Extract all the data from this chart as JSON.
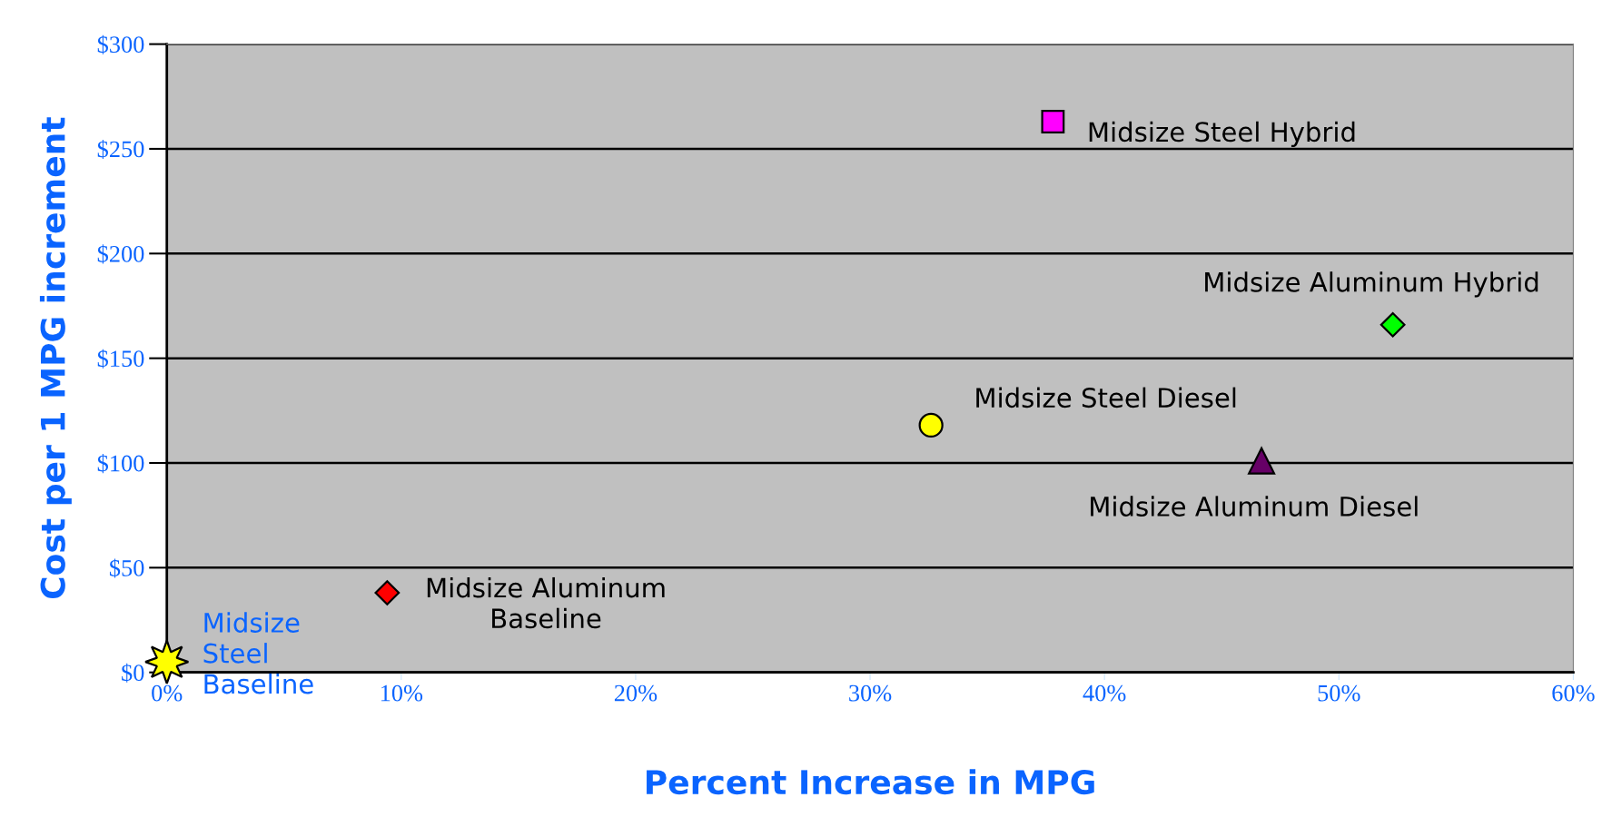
{
  "chart_data": {
    "type": "scatter",
    "xlabel": "Percent Increase in MPG",
    "ylabel": "Cost per 1 MPG increment",
    "series": [
      {
        "name": "Midsize\nSteel\nBaseline",
        "color": "#ffff00",
        "marker": "star",
        "x": [
          0
        ],
        "values": [
          5
        ]
      },
      {
        "name": "Midsize Aluminum\nBaseline",
        "color": "#ff0000",
        "marker": "diamond",
        "x": [
          9.4
        ],
        "values": [
          38
        ]
      },
      {
        "name": "Midsize Steel Hybrid",
        "color": "#ff00ff",
        "marker": "square",
        "x": [
          37.8
        ],
        "values": [
          263
        ]
      },
      {
        "name": "Midsize Aluminum Hybrid",
        "color": "#00ff00",
        "marker": "diamond",
        "x": [
          52.3
        ],
        "values": [
          166
        ]
      },
      {
        "name": "Midsize Steel Diesel",
        "color": "#ffff00",
        "marker": "circle",
        "x": [
          32.6
        ],
        "values": [
          118
        ]
      },
      {
        "name": "Midsize Aluminum Diesel",
        "color": "#660066",
        "marker": "triangle",
        "x": [
          46.7
        ],
        "values": [
          101
        ]
      }
    ],
    "xlim": [
      0,
      60
    ],
    "ylim": [
      0,
      300
    ],
    "xticks": [
      {
        "value": 0,
        "label": "0%"
      },
      {
        "value": 10,
        "label": "10%"
      },
      {
        "value": 20,
        "label": "20%"
      },
      {
        "value": 30,
        "label": "30%"
      },
      {
        "value": 40,
        "label": "40%"
      },
      {
        "value": 50,
        "label": "50%"
      },
      {
        "value": 60,
        "label": "60%"
      }
    ],
    "yticks": [
      {
        "value": 0,
        "label": "$0"
      },
      {
        "value": 50,
        "label": "$50"
      },
      {
        "value": 100,
        "label": "$100"
      },
      {
        "value": 150,
        "label": "$150"
      },
      {
        "value": 200,
        "label": "$200"
      },
      {
        "value": 250,
        "label": "$250"
      },
      {
        "value": 300,
        "label": "$300"
      }
    ],
    "grid": "y",
    "legend": false
  }
}
